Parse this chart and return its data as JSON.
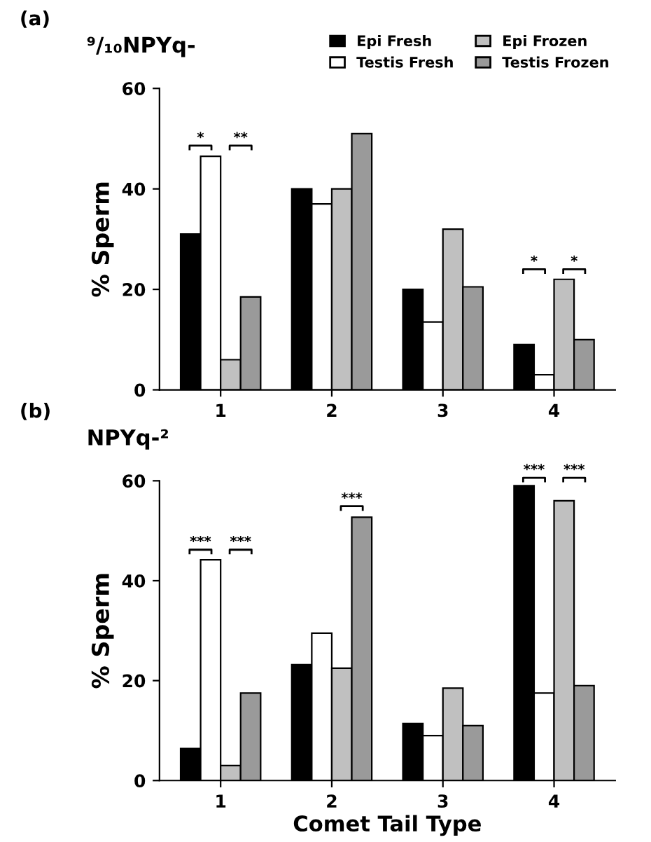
{
  "chart_data": [
    {
      "type": "bar",
      "title": "⁹/₁₀NPYq-",
      "ylabel": "% Sperm",
      "categories": [
        "1",
        "2",
        "3",
        "4"
      ],
      "ylim": [
        0,
        60
      ],
      "yticks": [
        0,
        20,
        40,
        60
      ],
      "grid": false,
      "legend": "top right",
      "annotations": [
        "(a)",
        "*",
        "**",
        "*",
        "*"
      ],
      "series": [
        {
          "name": "Epi Fresh",
          "color": "#000000",
          "values": [
            31,
            40,
            20,
            9
          ]
        },
        {
          "name": "Testis Fresh",
          "color": "#ffffff",
          "values": [
            46.5,
            37,
            13.5,
            3
          ]
        },
        {
          "name": "Epi Frozen",
          "color": "#c0c0c0",
          "values": [
            6,
            40,
            32,
            22
          ]
        },
        {
          "name": "Testis Frozen",
          "color": "#9a9a9a",
          "values": [
            18.5,
            51,
            20.5,
            10
          ]
        }
      ]
    },
    {
      "type": "bar",
      "title": "NPYq-²",
      "ylabel": "% Sperm",
      "xlabel": "Comet Tail Type",
      "categories": [
        "1",
        "2",
        "3",
        "4"
      ],
      "ylim": [
        0,
        60
      ],
      "yticks": [
        0,
        20,
        40,
        60
      ],
      "grid": false,
      "annotations": [
        "(b)",
        "***",
        "***",
        "***",
        "***",
        "***"
      ],
      "series": [
        {
          "color": "#000000",
          "values": [
            6.4,
            23.2,
            11.4,
            59
          ]
        },
        {
          "color": "#ffffff",
          "values": [
            44.2,
            29.5,
            9,
            17.5
          ]
        },
        {
          "color": "#c0c0c0",
          "values": [
            3,
            22.5,
            18.5,
            56
          ]
        },
        {
          "color": "#9a9a9a",
          "values": [
            17.5,
            52.7,
            11,
            19
          ]
        }
      ]
    }
  ]
}
